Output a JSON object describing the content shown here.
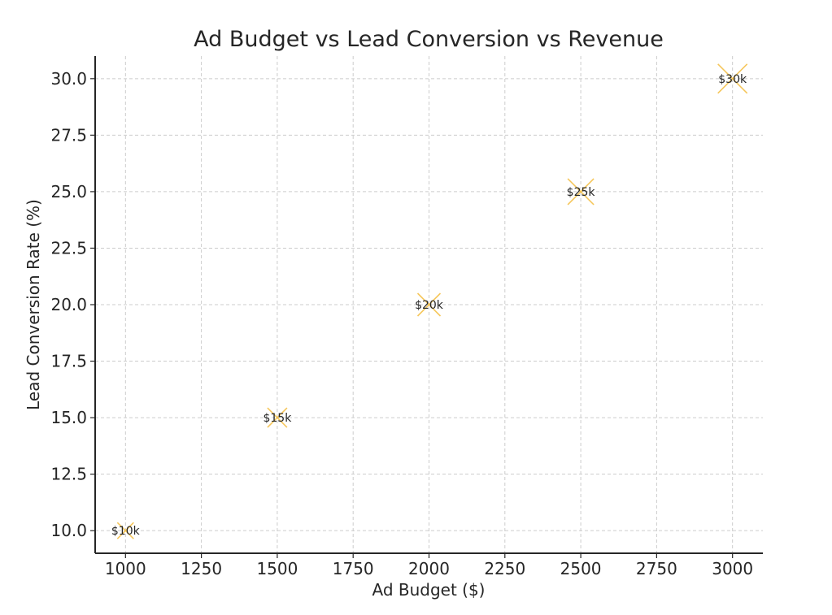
{
  "chart_data": {
    "type": "scatter",
    "title": "Ad Budget vs Lead Conversion vs Revenue",
    "xlabel": "Ad Budget ($)",
    "ylabel": "Lead Conversion Rate (%)",
    "xlim": [
      900,
      3100
    ],
    "ylim": [
      9.0,
      31.0
    ],
    "xticks": [
      1000,
      1250,
      1500,
      1750,
      2000,
      2250,
      2500,
      2750,
      3000
    ],
    "xtick_labels": [
      "1000",
      "1250",
      "1500",
      "1750",
      "2000",
      "2250",
      "2500",
      "2750",
      "3000"
    ],
    "yticks": [
      10.0,
      12.5,
      15.0,
      17.5,
      20.0,
      22.5,
      25.0,
      27.5,
      30.0
    ],
    "ytick_labels": [
      "10.0",
      "12.5",
      "15.0",
      "17.5",
      "20.0",
      "22.5",
      "25.0",
      "27.5",
      "30.0"
    ],
    "grid": true,
    "marker": "x",
    "marker_color": "#f5c04a",
    "points": [
      {
        "x": 1000,
        "y": 10,
        "revenue_k": 10,
        "label": "$10k"
      },
      {
        "x": 1500,
        "y": 15,
        "revenue_k": 15,
        "label": "$15k"
      },
      {
        "x": 2000,
        "y": 20,
        "revenue_k": 20,
        "label": "$20k"
      },
      {
        "x": 2500,
        "y": 25,
        "revenue_k": 25,
        "label": "$25k"
      },
      {
        "x": 3000,
        "y": 30,
        "revenue_k": 30,
        "label": "$30k"
      }
    ]
  }
}
